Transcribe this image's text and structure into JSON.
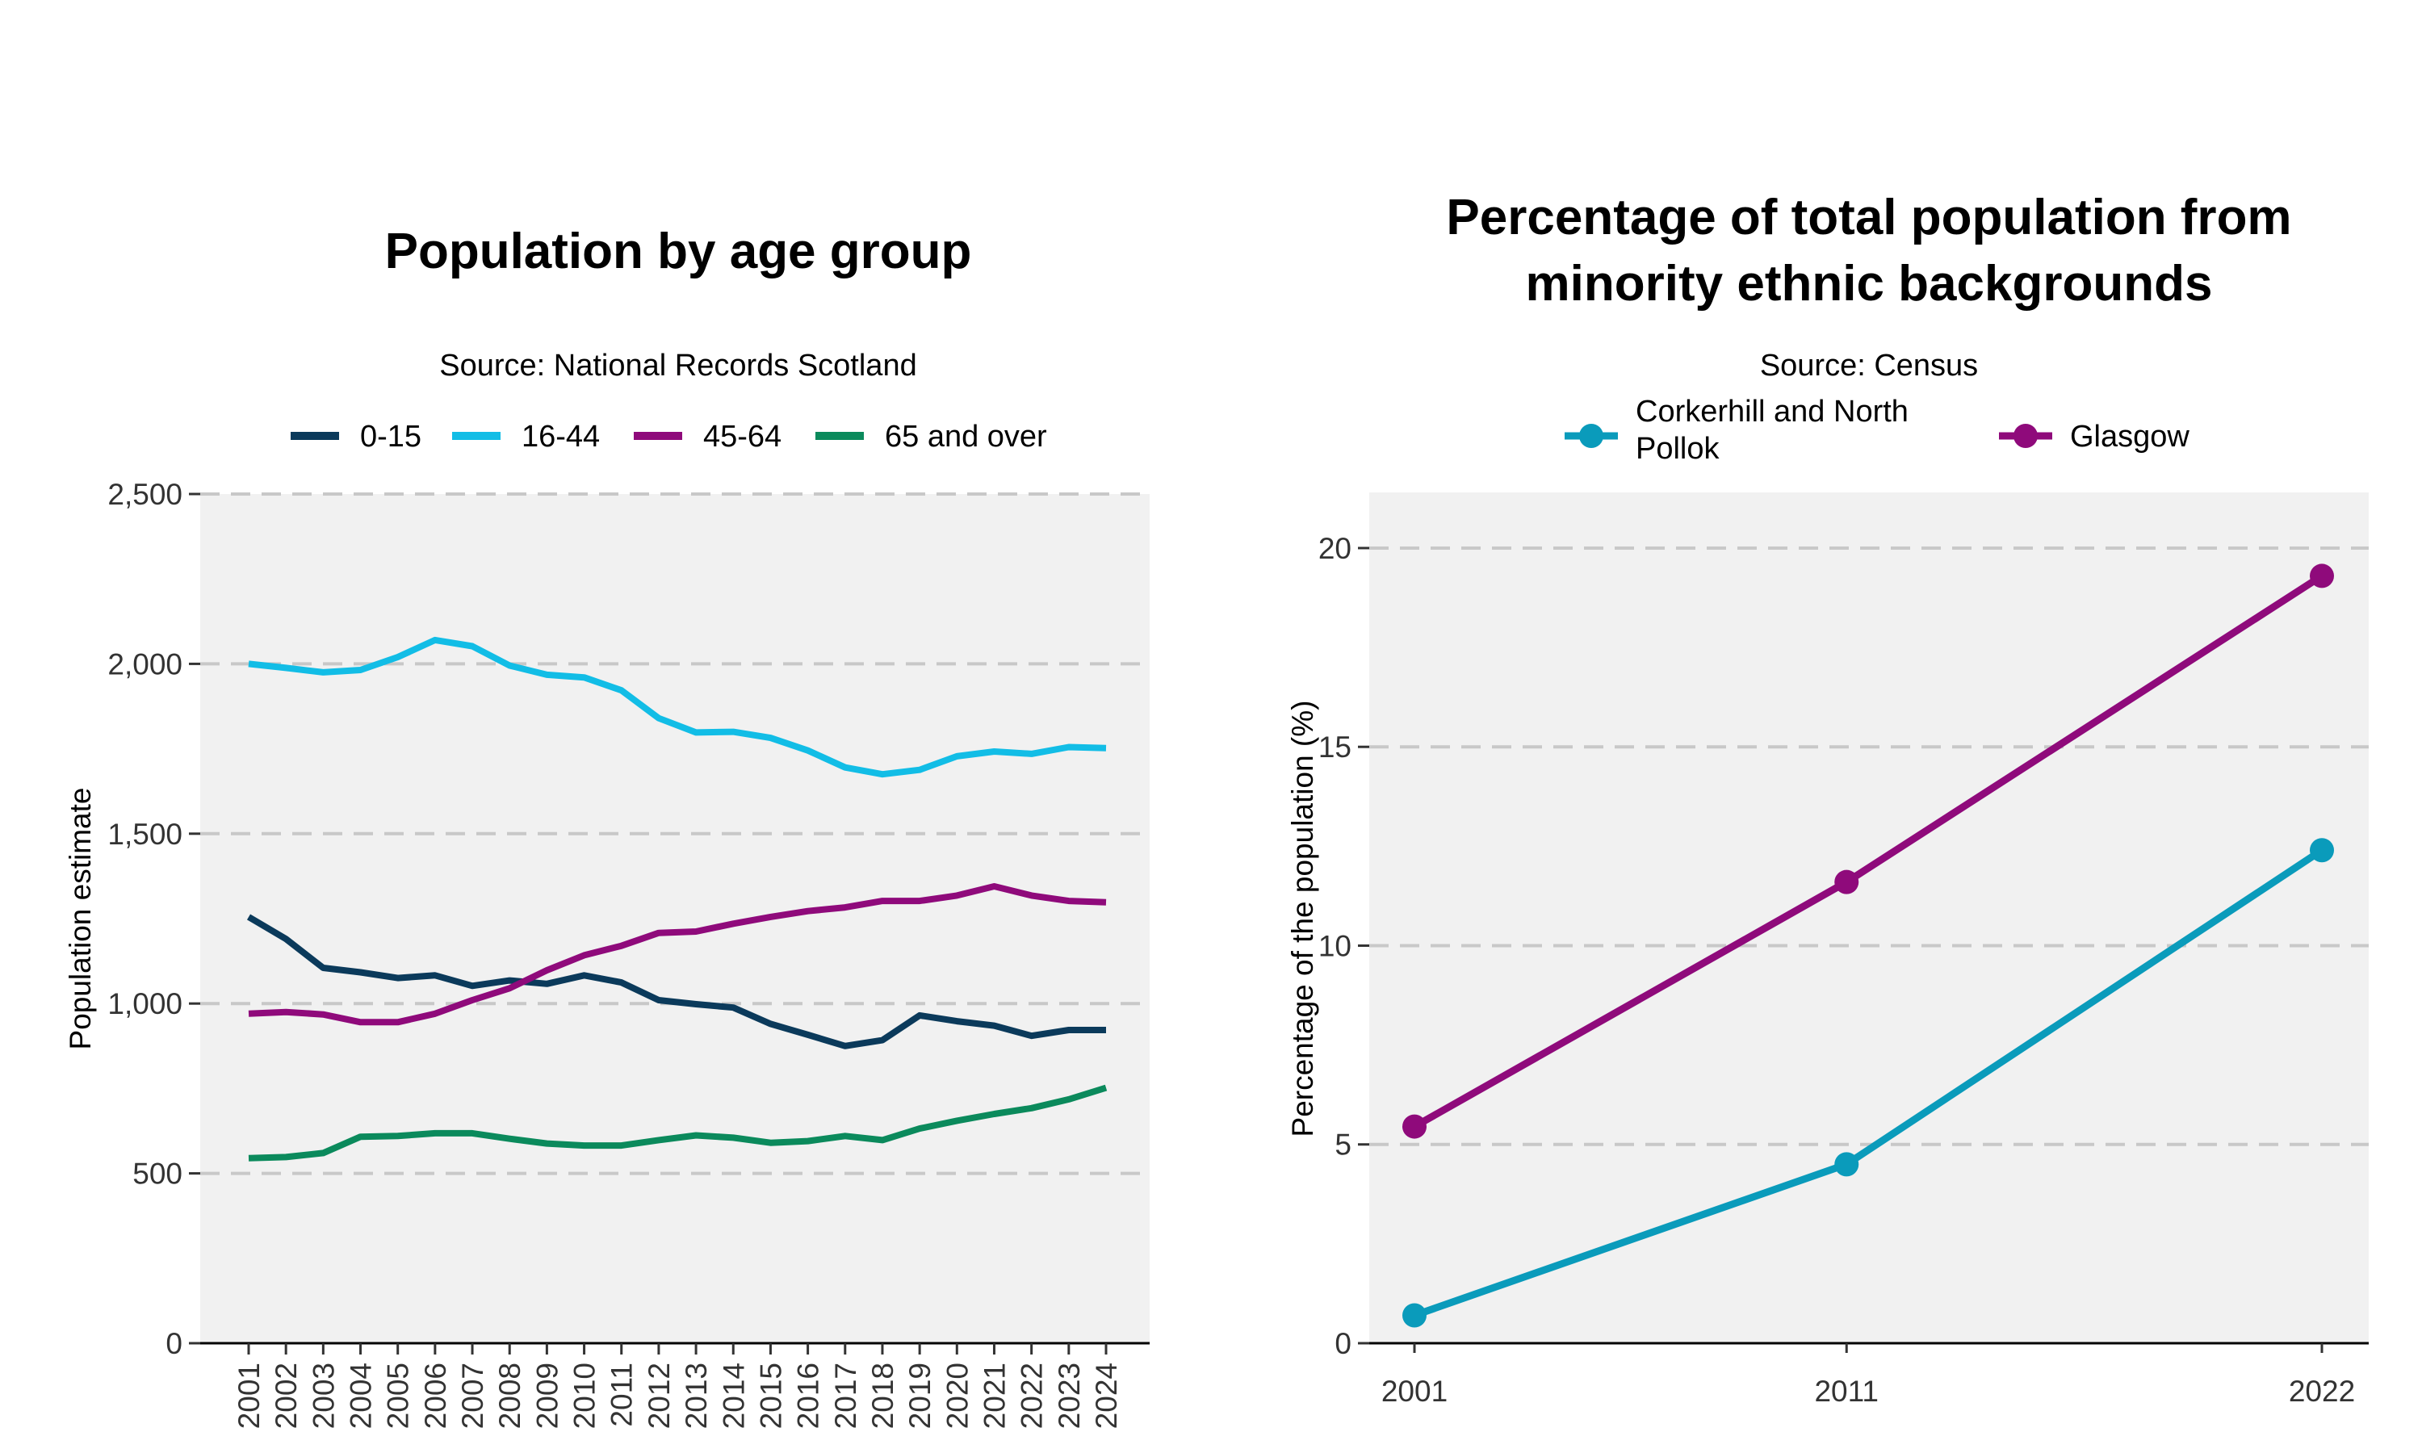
{
  "chart_data": [
    {
      "type": "line",
      "title": "Population by age group",
      "subtitle": "Source: National Records Scotland",
      "xlabel": "",
      "ylabel": "Population estimate",
      "ylim": [
        0,
        2500
      ],
      "yticks": [
        "0",
        "500",
        "1,000",
        "1,500",
        "2,000",
        "2,500"
      ],
      "grid": true,
      "legend_position": "top",
      "categories": [
        "2001",
        "2002",
        "2003",
        "2004",
        "2005",
        "2006",
        "2007",
        "2008",
        "2009",
        "2010",
        "2011",
        "2012",
        "2013",
        "2014",
        "2015",
        "2016",
        "2017",
        "2018",
        "2019",
        "2020",
        "2021",
        "2022",
        "2023",
        "2024"
      ],
      "series": [
        {
          "name": "0-15",
          "color": "#0b3a5b",
          "values": [
            1255,
            1190,
            1105,
            1092,
            1075,
            1083,
            1052,
            1068,
            1058,
            1083,
            1062,
            1010,
            998,
            988,
            940,
            908,
            875,
            892,
            965,
            948,
            935,
            905,
            922,
            922
          ]
        },
        {
          "name": "16-44",
          "color": "#12bde6",
          "values": [
            2000,
            1988,
            1975,
            1982,
            2020,
            2070,
            2052,
            1995,
            1968,
            1960,
            1922,
            1840,
            1798,
            1800,
            1782,
            1745,
            1695,
            1675,
            1688,
            1728,
            1742,
            1735,
            1755,
            1752
          ]
        },
        {
          "name": "45-64",
          "color": "#8f0a7b",
          "values": [
            970,
            975,
            968,
            945,
            945,
            970,
            1010,
            1045,
            1098,
            1142,
            1170,
            1208,
            1212,
            1235,
            1255,
            1272,
            1283,
            1302,
            1302,
            1318,
            1345,
            1318,
            1302,
            1298
          ]
        },
        {
          "name": "65 and over",
          "color": "#0b8a5c",
          "values": [
            545,
            548,
            560,
            608,
            610,
            618,
            618,
            602,
            588,
            582,
            582,
            598,
            612,
            605,
            590,
            595,
            610,
            598,
            632,
            655,
            675,
            692,
            718,
            752
          ]
        }
      ]
    },
    {
      "type": "line",
      "title": "Percentage of total population from minority ethnic backgrounds",
      "title_lines": [
        "Percentage of total population from",
        "minority ethnic backgrounds"
      ],
      "subtitle": "Source: Census",
      "xlabel": "",
      "ylabel": "Percentage of the population (%)",
      "ylim": [
        0,
        21.4
      ],
      "yticks": [
        "0",
        "5",
        "10",
        "15",
        "20"
      ],
      "grid": true,
      "legend_position": "top",
      "categories": [
        "2001",
        "2011",
        "2022"
      ],
      "series": [
        {
          "name": "Corkerhill and North Pollok",
          "name_lines": [
            "Corkerhill and North",
            "Pollok"
          ],
          "color": "#0a9bbb",
          "values": [
            0.7,
            4.5,
            12.4
          ]
        },
        {
          "name": "Glasgow",
          "name_lines": [
            "Glasgow"
          ],
          "color": "#8f0a7b",
          "values": [
            5.45,
            11.6,
            19.3
          ]
        }
      ]
    }
  ]
}
